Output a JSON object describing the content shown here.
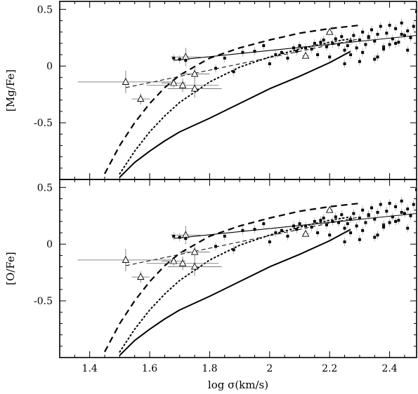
{
  "chart_data": [
    {
      "type": "scatter",
      "panel": "top",
      "title": "",
      "xlabel": "",
      "ylabel": "[Mg/Fe]",
      "xlim": [
        1.3,
        2.49
      ],
      "ylim": [
        -1.0,
        0.57
      ],
      "xticks": [
        1.4,
        1.6,
        1.8,
        2.0,
        2.2,
        2.4
      ],
      "xtick_labels": [],
      "yticks": [
        0.5,
        0,
        -0.5
      ],
      "ytick_labels": [
        "0.5",
        "0",
        "-0.5"
      ],
      "grid": false,
      "series": [
        {
          "style": "dashed-bold",
          "x": [
            1.45,
            1.5,
            1.55,
            1.6,
            1.65,
            1.7,
            1.8,
            1.9,
            2.0,
            2.1,
            2.2,
            2.3
          ],
          "y": [
            -0.95,
            -0.7,
            -0.5,
            -0.33,
            -0.19,
            -0.08,
            0.07,
            0.16,
            0.23,
            0.29,
            0.33,
            0.36
          ]
        },
        {
          "style": "dotted",
          "x": [
            1.5,
            1.55,
            1.6,
            1.65,
            1.7,
            1.8,
            1.9,
            2.0,
            2.1,
            2.2,
            2.27
          ],
          "y": [
            -0.95,
            -0.75,
            -0.58,
            -0.44,
            -0.32,
            -0.14,
            -0.01,
            0.08,
            0.15,
            0.21,
            0.24
          ]
        },
        {
          "style": "solid-bold",
          "x": [
            1.5,
            1.55,
            1.6,
            1.65,
            1.7,
            1.8,
            1.9,
            2.0,
            2.1,
            2.2,
            2.27
          ],
          "y": [
            -0.98,
            -0.85,
            -0.75,
            -0.66,
            -0.58,
            -0.46,
            -0.33,
            -0.2,
            -0.09,
            0.03,
            0.13
          ]
        },
        {
          "style": "solid-thin",
          "x": [
            1.68,
            2.49
          ],
          "y": [
            0.05,
            0.27
          ]
        },
        {
          "style": "dashed-thin",
          "x": [
            1.52,
            2.3
          ],
          "y": [
            -0.19,
            0.24
          ]
        },
        {
          "style": "triangles",
          "x": [
            1.52,
            1.57,
            1.68,
            1.71,
            1.72,
            1.75,
            1.75,
            2.12,
            2.2
          ],
          "y": [
            -0.14,
            -0.29,
            -0.15,
            -0.17,
            0.08,
            -0.2,
            -0.07,
            0.09,
            0.3
          ],
          "xerr": [
            0.16,
            0.03,
            0.04,
            0.12,
            0.05,
            0.09,
            0.05,
            0.01,
            0.01
          ],
          "yerr": [
            0.1,
            0.05,
            0.04,
            0.06,
            0.08,
            0.08,
            0.05,
            0.02,
            0.02
          ]
        },
        {
          "style": "points",
          "x": [
            1.68,
            1.7,
            1.72,
            1.82,
            1.85,
            1.88,
            1.91,
            1.95,
            1.98,
            2.0,
            2.02,
            2.04,
            2.06,
            2.08,
            2.09,
            2.1,
            2.12,
            2.14,
            2.15,
            2.16,
            2.17,
            2.18,
            2.19,
            2.2,
            2.21,
            2.22,
            2.23,
            2.24,
            2.25,
            2.26,
            2.27,
            2.28,
            2.29,
            2.3,
            2.31,
            2.32,
            2.33,
            2.34,
            2.35,
            2.36,
            2.37,
            2.38,
            2.39,
            2.4,
            2.41,
            2.42,
            2.43,
            2.44,
            2.45,
            2.46,
            2.47,
            2.48,
            2.49,
            2.25,
            2.27,
            2.31,
            2.35,
            2.38,
            2.42,
            2.44,
            2.46,
            2.3,
            2.33,
            2.36,
            2.4
          ],
          "y": [
            0.07,
            0.06,
            0.05,
            -0.02,
            0.07,
            -0.05,
            0.12,
            0.13,
            0.18,
            0.02,
            0.1,
            0.12,
            0.07,
            0.16,
            0.13,
            0.18,
            0.16,
            0.15,
            0.2,
            0.1,
            0.21,
            0.23,
            0.17,
            0.08,
            0.2,
            0.24,
            0.19,
            0.26,
            0.14,
            0.18,
            0.22,
            0.27,
            0.16,
            0.23,
            0.3,
            0.19,
            0.25,
            0.32,
            0.22,
            0.28,
            0.35,
            0.17,
            0.29,
            0.36,
            0.24,
            0.33,
            0.21,
            0.38,
            0.27,
            0.31,
            0.25,
            0.35,
            0.48,
            0.02,
            0.1,
            0.12,
            0.06,
            0.15,
            0.2,
            0.28,
            0.14,
            0.04,
            0.26,
            0.08,
            0.19
          ]
        }
      ]
    },
    {
      "type": "scatter",
      "panel": "bottom",
      "title": "",
      "xlabel": "log σ(km/s)",
      "ylabel": "[O/Fe]",
      "xlim": [
        1.3,
        2.49
      ],
      "ylim": [
        -1.0,
        0.57
      ],
      "xticks": [
        1.4,
        1.6,
        1.8,
        2.0,
        2.2,
        2.4
      ],
      "xtick_labels": [
        "1.4",
        "1.6",
        "1.8",
        "2",
        "2.2",
        "2.4"
      ],
      "yticks": [
        0.5,
        0,
        -0.5
      ],
      "ytick_labels": [
        "0.5",
        "0",
        "-0.5"
      ],
      "grid": false,
      "series": [
        {
          "style": "dashed-bold",
          "x": [
            1.45,
            1.5,
            1.55,
            1.6,
            1.65,
            1.7,
            1.8,
            1.9,
            2.0,
            2.1,
            2.2,
            2.3
          ],
          "y": [
            -0.95,
            -0.7,
            -0.5,
            -0.33,
            -0.19,
            -0.08,
            0.07,
            0.16,
            0.23,
            0.29,
            0.33,
            0.36
          ]
        },
        {
          "style": "dotted",
          "x": [
            1.5,
            1.55,
            1.6,
            1.65,
            1.7,
            1.8,
            1.9,
            2.0,
            2.1,
            2.2,
            2.27
          ],
          "y": [
            -0.95,
            -0.75,
            -0.58,
            -0.44,
            -0.32,
            -0.14,
            -0.01,
            0.08,
            0.15,
            0.21,
            0.24
          ]
        },
        {
          "style": "solid-bold",
          "x": [
            1.5,
            1.55,
            1.6,
            1.65,
            1.7,
            1.8,
            1.9,
            2.0,
            2.1,
            2.2,
            2.27
          ],
          "y": [
            -0.98,
            -0.85,
            -0.75,
            -0.66,
            -0.58,
            -0.46,
            -0.33,
            -0.2,
            -0.09,
            0.03,
            0.13
          ]
        },
        {
          "style": "solid-thin",
          "x": [
            1.68,
            2.49
          ],
          "y": [
            0.05,
            0.27
          ]
        },
        {
          "style": "dashed-thin",
          "x": [
            1.52,
            2.3
          ],
          "y": [
            -0.19,
            0.24
          ]
        },
        {
          "style": "triangles",
          "x": [
            1.52,
            1.57,
            1.68,
            1.71,
            1.72,
            1.75,
            1.75,
            2.12,
            2.2
          ],
          "y": [
            -0.14,
            -0.29,
            -0.15,
            -0.17,
            0.08,
            -0.2,
            -0.07,
            0.09,
            0.3
          ],
          "xerr": [
            0.16,
            0.03,
            0.04,
            0.12,
            0.05,
            0.09,
            0.05,
            0.01,
            0.01
          ],
          "yerr": [
            0.1,
            0.05,
            0.04,
            0.06,
            0.08,
            0.08,
            0.05,
            0.02,
            0.02
          ]
        },
        {
          "style": "points",
          "x": [
            1.68,
            1.7,
            1.72,
            1.82,
            1.85,
            1.88,
            1.91,
            1.95,
            1.98,
            2.0,
            2.02,
            2.04,
            2.06,
            2.08,
            2.09,
            2.1,
            2.12,
            2.14,
            2.15,
            2.16,
            2.17,
            2.18,
            2.19,
            2.2,
            2.21,
            2.22,
            2.23,
            2.24,
            2.25,
            2.26,
            2.27,
            2.28,
            2.29,
            2.3,
            2.31,
            2.32,
            2.33,
            2.34,
            2.35,
            2.36,
            2.37,
            2.38,
            2.39,
            2.4,
            2.41,
            2.42,
            2.43,
            2.44,
            2.45,
            2.46,
            2.47,
            2.48,
            2.49,
            2.25,
            2.27,
            2.31,
            2.35,
            2.38,
            2.42,
            2.44,
            2.46,
            2.3,
            2.33,
            2.36,
            2.4
          ],
          "y": [
            0.07,
            0.06,
            0.05,
            -0.02,
            0.07,
            -0.05,
            0.12,
            0.13,
            0.18,
            0.02,
            0.1,
            0.12,
            0.07,
            0.16,
            0.13,
            0.18,
            0.16,
            0.15,
            0.2,
            0.1,
            0.21,
            0.23,
            0.17,
            0.08,
            0.2,
            0.24,
            0.19,
            0.26,
            0.14,
            0.18,
            0.22,
            0.27,
            0.16,
            0.23,
            0.3,
            0.19,
            0.25,
            0.32,
            0.22,
            0.28,
            0.35,
            0.17,
            0.29,
            0.36,
            0.24,
            0.33,
            0.21,
            0.38,
            0.27,
            0.31,
            0.25,
            0.35,
            0.48,
            0.02,
            0.1,
            0.12,
            0.06,
            0.15,
            0.2,
            0.28,
            0.14,
            0.04,
            0.26,
            0.08,
            0.19
          ]
        }
      ]
    }
  ]
}
